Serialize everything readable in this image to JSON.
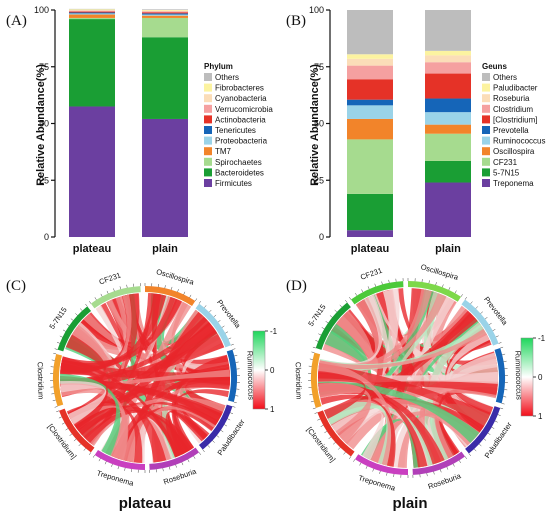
{
  "panels": {
    "a_label": "(A)",
    "b_label": "(B)",
    "c_label": "(C)",
    "d_label": "(D)"
  },
  "chart_data": [
    {
      "type": "bar",
      "stacked": true,
      "ylabel": "Relative Abundance(%)",
      "ylim": [
        0,
        100
      ],
      "yticks": [
        "0",
        "25",
        "50",
        "75",
        "100"
      ],
      "categories": [
        "plateau",
        "plain"
      ],
      "legend_title": "Phylum",
      "legend_position": "right",
      "series": [
        {
          "name": "Firmicutes",
          "color": "#6B3FA0",
          "values": [
            57.5,
            52
          ]
        },
        {
          "name": "Bacteroidetes",
          "color": "#1A9E34",
          "values": [
            38.5,
            36
          ]
        },
        {
          "name": "Spirochaetes",
          "color": "#A6DB8F",
          "values": [
            0.5,
            8.5
          ]
        },
        {
          "name": "TM7",
          "color": "#F2842A",
          "values": [
            1.5,
            1
          ]
        },
        {
          "name": "Proteobacteria",
          "color": "#9AD3E8",
          "values": [
            0.5,
            0.5
          ]
        },
        {
          "name": "Tenericutes",
          "color": "#1565B8",
          "values": [
            0.4,
            0.5
          ]
        },
        {
          "name": "Actinobacteria",
          "color": "#E53227",
          "values": [
            0.4,
            0.5
          ]
        },
        {
          "name": "Verrucomicrobia",
          "color": "#F5A0A0",
          "values": [
            0.4,
            0.4
          ]
        },
        {
          "name": "Cyanobacteria",
          "color": "#FBDDB8",
          "values": [
            0.3,
            0.3
          ]
        },
        {
          "name": "Fibrobacteres",
          "color": "#FCF3A0",
          "values": [
            0.3,
            0.3
          ]
        },
        {
          "name": "Others",
          "color": "#BDBDBD",
          "values": [
            0.2,
            0.3
          ]
        }
      ]
    },
    {
      "type": "bar",
      "stacked": true,
      "ylabel": "Relative Abundance(%)",
      "ylim": [
        0,
        100
      ],
      "yticks": [
        "0",
        "25",
        "50",
        "75",
        "100"
      ],
      "categories": [
        "plateau",
        "plain"
      ],
      "legend_title": "Geuns",
      "legend_position": "right",
      "series": [
        {
          "name": "Treponema",
          "color": "#6B3FA0",
          "values": [
            3,
            24
          ]
        },
        {
          "name": "5-7N15",
          "color": "#1A9E34",
          "values": [
            16,
            9.5
          ]
        },
        {
          "name": "CF231",
          "color": "#A6DB8F",
          "values": [
            24,
            12
          ]
        },
        {
          "name": "Oscillospira",
          "color": "#F2842A",
          "values": [
            9,
            4
          ]
        },
        {
          "name": "Ruminococcus",
          "color": "#9AD3E8",
          "values": [
            6,
            5.5
          ]
        },
        {
          "name": "Prevotella",
          "color": "#1565B8",
          "values": [
            2.5,
            6
          ]
        },
        {
          "name": "[Clostridium]",
          "color": "#E53227",
          "values": [
            9,
            11
          ]
        },
        {
          "name": "Clostridium",
          "color": "#F5A0A0",
          "values": [
            6,
            5
          ]
        },
        {
          "name": "Roseburia",
          "color": "#FBDDB8",
          "values": [
            3,
            3
          ]
        },
        {
          "name": "Paludibacter",
          "color": "#FCF3A0",
          "values": [
            2,
            2
          ]
        },
        {
          "name": "Others",
          "color": "#BDBDBD",
          "values": [
            19.5,
            18
          ]
        }
      ]
    },
    {
      "type": "chord",
      "title": "plateau",
      "legend_ticks": [
        "-1",
        "0",
        "1"
      ],
      "segments": [
        {
          "name": "5-7N15",
          "color": "#1A9E34"
        },
        {
          "name": "CF231",
          "color": "#A6DB8F"
        },
        {
          "name": "Oscillospira",
          "color": "#F2842A"
        },
        {
          "name": "Prevotella",
          "color": "#9AD3E8"
        },
        {
          "name": "Ruminococcus",
          "color": "#1565B8"
        },
        {
          "name": "Paludibacter",
          "color": "#3A2BA8"
        },
        {
          "name": "Roseburia",
          "color": "#B13FB8"
        },
        {
          "name": "Treponema",
          "color": "#C93FC0"
        },
        {
          "name": "[Clostridium]",
          "color": "#E53227"
        },
        {
          "name": "Clostridium",
          "color": "#F2A02A"
        }
      ]
    },
    {
      "type": "chord",
      "title": "plain",
      "legend_ticks": [
        "-1",
        "0",
        "1"
      ],
      "segments": [
        {
          "name": "5-7N15",
          "color": "#1A9E34"
        },
        {
          "name": "CF231",
          "color": "#4CC93A"
        },
        {
          "name": "Oscillospira",
          "color": "#7DD84A"
        },
        {
          "name": "Prevotella",
          "color": "#9AD3E8"
        },
        {
          "name": "Ruminococcus",
          "color": "#1565B8"
        },
        {
          "name": "Paludibacter",
          "color": "#3A2BA8"
        },
        {
          "name": "Roseburia",
          "color": "#B13FB8"
        },
        {
          "name": "Treponema",
          "color": "#C93FC0"
        },
        {
          "name": "[Clostridium]",
          "color": "#E53227"
        },
        {
          "name": "Clostridium",
          "color": "#F2A02A"
        }
      ]
    }
  ]
}
